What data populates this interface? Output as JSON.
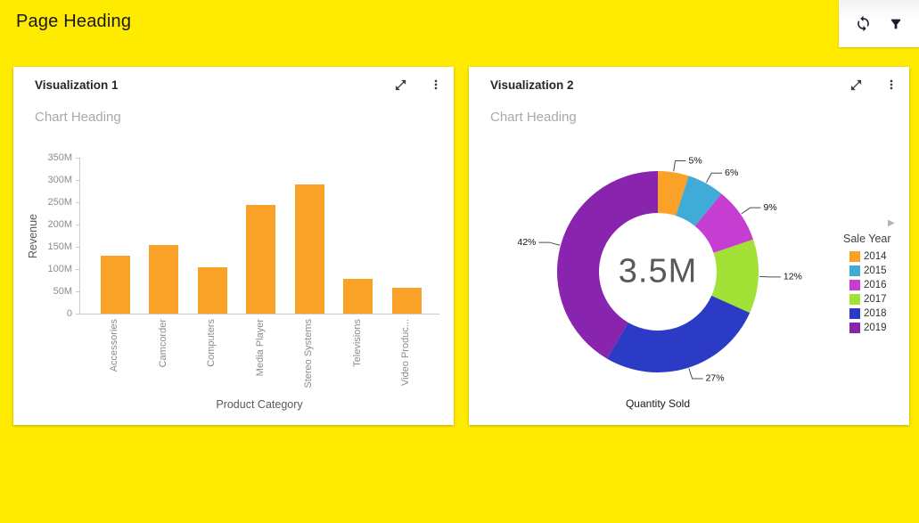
{
  "page": {
    "title": "Page Heading",
    "background_color": "#FFEB00"
  },
  "toolbar": {
    "refresh_icon": "refresh",
    "filter_icon": "filter"
  },
  "icons": {
    "legend_next": "▶"
  },
  "cards": [
    {
      "title": "Visualization 1",
      "chart_heading": "Chart Heading"
    },
    {
      "title": "Visualization 2",
      "chart_heading": "Chart Heading"
    }
  ],
  "chart_data": [
    {
      "type": "bar",
      "title": "Chart Heading",
      "categories": [
        "Accessories",
        "Camcorder",
        "Computers",
        "Media Player",
        "Stereo Systems",
        "Televisions",
        "Video Produc..."
      ],
      "values": [
        130,
        155,
        105,
        245,
        290,
        78,
        58
      ],
      "value_unit": "M",
      "xlabel": "Product Category",
      "ylabel": "Revenue",
      "ylim": [
        0,
        350
      ],
      "ytick_labels": [
        "0",
        "50M",
        "100M",
        "150M",
        "200M",
        "250M",
        "300M",
        "350M"
      ],
      "bar_color": "#F9A227",
      "grid": false,
      "legend_position": "none"
    },
    {
      "type": "pie",
      "subtype": "donut",
      "title": "Chart Heading",
      "center_label": "3.5M",
      "categories": [
        "2014",
        "2015",
        "2016",
        "2017",
        "2018",
        "2019"
      ],
      "values_percent": [
        5,
        6,
        9,
        12,
        27,
        42
      ],
      "slice_labels": [
        "5%",
        "6%",
        "9%",
        "12%",
        "27%",
        "42%"
      ],
      "colors": [
        "#F9A227",
        "#3FABD6",
        "#C53DD1",
        "#A2E237",
        "#2B3BC6",
        "#8924AE"
      ],
      "legend_title": "Sale Year",
      "legend_position": "right",
      "xlabel": "Quantity Sold"
    }
  ]
}
